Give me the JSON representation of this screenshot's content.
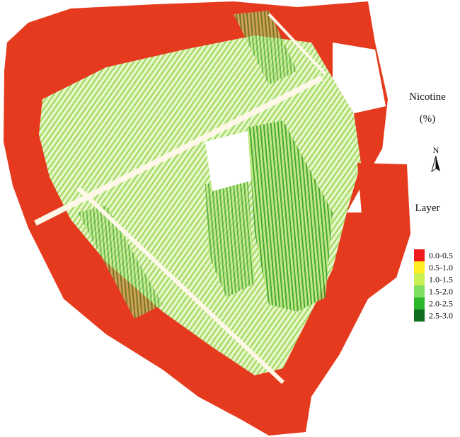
{
  "title": "Nicotine",
  "unit": "(%)",
  "north": "N",
  "legend": {
    "title": "Layer",
    "items": [
      {
        "label": "0.0-0.5",
        "color": "#ee1c1c"
      },
      {
        "label": "0.5-1.0",
        "color": "#ffee22"
      },
      {
        "label": "1.0-1.5",
        "color": "#c8f050"
      },
      {
        "label": "1.5-2.0",
        "color": "#7ee060"
      },
      {
        "label": "2.0-2.5",
        "color": "#2cb62c"
      },
      {
        "label": "2.5-3.0",
        "color": "#0e6e1e"
      }
    ]
  }
}
